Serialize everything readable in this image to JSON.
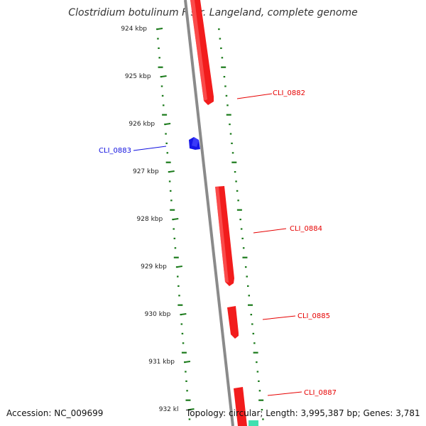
{
  "title": "Clostridium botulinum F str. Langeland, complete genome",
  "footer": {
    "accession": "Accession: NC_009699",
    "topology": "Topology: circular; Length: 3,995,387 bp; Genes: 3,781"
  },
  "ticks": [
    {
      "label": "924 kbp",
      "pos_kbp": 924
    },
    {
      "label": "925 kbp",
      "pos_kbp": 925
    },
    {
      "label": "926 kbp",
      "pos_kbp": 926
    },
    {
      "label": "927 kbp",
      "pos_kbp": 927
    },
    {
      "label": "928 kbp",
      "pos_kbp": 928
    },
    {
      "label": "929 kbp",
      "pos_kbp": 929
    },
    {
      "label": "930 kbp",
      "pos_kbp": 930
    },
    {
      "label": "931 kbp",
      "pos_kbp": 931
    },
    {
      "label": "932 kl",
      "pos_kbp": 932
    }
  ],
  "genes": [
    {
      "label": "CLI_0882",
      "strand": "forward",
      "color": "#e60000"
    },
    {
      "label": "CLI_0883",
      "strand": "reverse",
      "color": "#1010e0"
    },
    {
      "label": "CLI_0884",
      "strand": "forward",
      "color": "#e60000"
    },
    {
      "label": "CLI_0885",
      "strand": "forward",
      "color": "#e60000"
    },
    {
      "label": "CLI_0887",
      "strand": "forward",
      "color": "#e60000"
    }
  ],
  "colors": {
    "backbone": "#8a8a8a",
    "tick": "#1a7a1a",
    "forward_gene": "#e60000",
    "reverse_gene": "#1010e0",
    "teal_gene": "#40e0b0"
  }
}
